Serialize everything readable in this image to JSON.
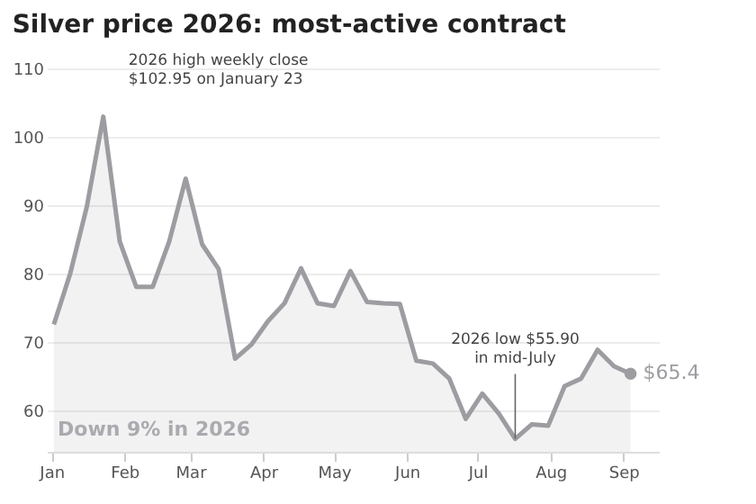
{
  "chart_data": {
    "type": "area",
    "title": "Silver price 2026: most-active contract",
    "x": [
      "2026-01-02",
      "2026-01-09",
      "2026-01-16",
      "2026-01-23",
      "2026-01-30",
      "2026-02-06",
      "2026-02-13",
      "2026-02-20",
      "2026-02-27",
      "2026-03-06",
      "2026-03-13",
      "2026-03-20",
      "2026-03-27",
      "2026-04-03",
      "2026-04-10",
      "2026-04-17",
      "2026-04-24",
      "2026-05-01",
      "2026-05-08",
      "2026-05-15",
      "2026-05-22",
      "2026-05-29",
      "2026-06-05",
      "2026-06-12",
      "2026-06-19",
      "2026-06-26",
      "2026-07-03",
      "2026-07-10",
      "2026-07-17",
      "2026-07-24",
      "2026-07-31",
      "2026-08-07",
      "2026-08-14",
      "2026-08-21",
      "2026-08-28",
      "2026-09-04"
    ],
    "series": [
      {
        "color": "#9c9ca1",
        "values": [
          72.6,
          80.1,
          89.8,
          102.95,
          84.7,
          78.1,
          78.1,
          84.7,
          93.9,
          84.3,
          80.7,
          67.6,
          69.7,
          73.1,
          75.7,
          80.8,
          75.7,
          75.3,
          80.4,
          75.9,
          75.7,
          75.6,
          67.3,
          66.9,
          64.7,
          58.8,
          62.5,
          59.6,
          55.9,
          58.0,
          57.8,
          63.6,
          64.7,
          68.9,
          66.5,
          65.4
        ]
      }
    ],
    "xlim": [
      "2025-12-30",
      "2026-09-16"
    ],
    "xticks": [
      {
        "value": "2026-01-01",
        "label": "Jan"
      },
      {
        "value": "2026-02-01",
        "label": "Feb"
      },
      {
        "value": "2026-03-01",
        "label": "Mar"
      },
      {
        "value": "2026-04-01",
        "label": "Apr"
      },
      {
        "value": "2026-05-01",
        "label": "May"
      },
      {
        "value": "2026-06-01",
        "label": "Jun"
      },
      {
        "value": "2026-07-01",
        "label": "Jul"
      },
      {
        "value": "2026-08-01",
        "label": "Aug"
      },
      {
        "value": "2026-09-01",
        "label": "Sep"
      }
    ],
    "ylim": [
      54,
      110
    ],
    "yticks": [
      60,
      70,
      80,
      90,
      100,
      110
    ],
    "grid": "y",
    "annotations": [
      {
        "text": "2026 high weekly close\n$102.95 on January 23",
        "x": "2026-01-23",
        "y": 102.95
      },
      {
        "text": "2026 low $55.90\nin mid-July",
        "x": "2026-07-17",
        "y": 55.9
      },
      {
        "text": "$65.4",
        "x": "2026-09-04",
        "y": 65.4
      },
      "Down 9% in 2026"
    ]
  }
}
